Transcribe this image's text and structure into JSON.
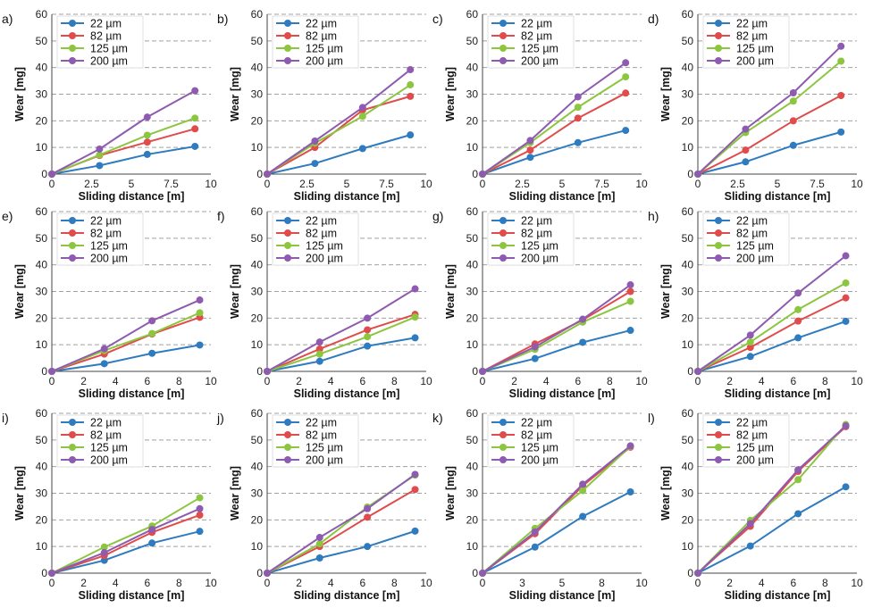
{
  "colors": {
    "s22": "#2e7bbf",
    "s82": "#e04b4b",
    "s125": "#8cc63f",
    "s200": "#8e5bb0",
    "grid": "#a0a0a0",
    "axis": "#444444"
  },
  "chart_data": [
    {
      "label": "a)",
      "type": "line",
      "xlabel": "Sliding distance [m]",
      "ylabel": "Wear [mg]",
      "xlim": [
        0,
        10
      ],
      "ylim": [
        0,
        60
      ],
      "xticks": [
        "0",
        "2.5",
        "5",
        "7.5",
        "10"
      ],
      "yticks": [
        "0",
        "10",
        "20",
        "30",
        "40",
        "50",
        "60"
      ],
      "x": [
        0,
        3,
        6,
        9
      ],
      "series": [
        {
          "name": "22 µm",
          "values": [
            0,
            3.2,
            7.4,
            10.4
          ]
        },
        {
          "name": "82 µm",
          "values": [
            0,
            7.0,
            12.0,
            17.0
          ]
        },
        {
          "name": "125 µm",
          "values": [
            0,
            7.2,
            14.6,
            21.0
          ]
        },
        {
          "name": "200 µm",
          "values": [
            0,
            9.4,
            21.4,
            31.3
          ]
        }
      ]
    },
    {
      "label": "b)",
      "type": "line",
      "xlabel": "Sliding distance [m]",
      "ylabel": "Wear [mg]",
      "xlim": [
        0,
        10
      ],
      "ylim": [
        0,
        60
      ],
      "xticks": [
        "0",
        "2.5",
        "5",
        "7.5",
        "10"
      ],
      "yticks": [
        "0",
        "10",
        "20",
        "30",
        "40",
        "50",
        "60"
      ],
      "x": [
        0,
        3,
        6,
        9
      ],
      "series": [
        {
          "name": "22 µm",
          "values": [
            0,
            4.0,
            9.6,
            14.7
          ]
        },
        {
          "name": "82 µm",
          "values": [
            0,
            10.0,
            24.0,
            29.2
          ]
        },
        {
          "name": "125 µm",
          "values": [
            0,
            11.6,
            21.7,
            33.5
          ]
        },
        {
          "name": "200 µm",
          "values": [
            0,
            12.4,
            25.0,
            39.2
          ]
        }
      ]
    },
    {
      "label": "c)",
      "type": "line",
      "xlabel": "Sliding distance [m]",
      "ylabel": "Wear [mg]",
      "xlim": [
        0,
        10
      ],
      "ylim": [
        0,
        60
      ],
      "xticks": [
        "0",
        "2.5",
        "5",
        "7.5",
        "10"
      ],
      "yticks": [
        "0",
        "10",
        "20",
        "30",
        "40",
        "50",
        "60"
      ],
      "x": [
        0,
        3,
        6,
        9
      ],
      "series": [
        {
          "name": "22 µm",
          "values": [
            0,
            6.3,
            11.8,
            16.4
          ]
        },
        {
          "name": "82 µm",
          "values": [
            0,
            9.0,
            21.0,
            30.4
          ]
        },
        {
          "name": "125 µm",
          "values": [
            0,
            11.8,
            25.1,
            36.5
          ]
        },
        {
          "name": "200 µm",
          "values": [
            0,
            12.6,
            29.0,
            41.8
          ]
        }
      ]
    },
    {
      "label": "d)",
      "type": "line",
      "xlabel": "Sliding distance [m]",
      "ylabel": "Wear [mg]",
      "xlim": [
        0,
        10
      ],
      "ylim": [
        0,
        60
      ],
      "xticks": [
        "0",
        "2.5",
        "5",
        "7.5",
        "10"
      ],
      "yticks": [
        "0",
        "10",
        "20",
        "30",
        "40",
        "50",
        "60"
      ],
      "x": [
        0,
        3,
        6,
        9
      ],
      "series": [
        {
          "name": "22 µm",
          "values": [
            0,
            4.6,
            10.8,
            15.8
          ]
        },
        {
          "name": "82 µm",
          "values": [
            0,
            9.0,
            20.0,
            29.5
          ]
        },
        {
          "name": "125 µm",
          "values": [
            0,
            15.6,
            27.4,
            42.4
          ]
        },
        {
          "name": "200 µm",
          "values": [
            0,
            16.9,
            30.5,
            48.0
          ]
        }
      ]
    },
    {
      "label": "e)",
      "type": "line",
      "xlabel": "Sliding distance [m]",
      "ylabel": "Wear [mg]",
      "xlim": [
        0,
        10
      ],
      "ylim": [
        0,
        60
      ],
      "xticks": [
        "0",
        "2",
        "4",
        "6",
        "8",
        "10"
      ],
      "yticks": [
        "0",
        "10",
        "20",
        "30",
        "40",
        "50",
        "60"
      ],
      "x": [
        0,
        3.3,
        6.3,
        9.3
      ],
      "series": [
        {
          "name": "22 µm",
          "values": [
            0,
            2.9,
            6.8,
            9.9
          ]
        },
        {
          "name": "82 µm",
          "values": [
            0,
            6.5,
            14.0,
            20.3
          ]
        },
        {
          "name": "125 µm",
          "values": [
            0,
            7.8,
            14.2,
            22.0
          ]
        },
        {
          "name": "200 µm",
          "values": [
            0,
            8.5,
            19.0,
            26.8
          ]
        }
      ]
    },
    {
      "label": "f)",
      "type": "line",
      "xlabel": "Sliding distance [m]",
      "ylabel": "Wear [mg]",
      "xlim": [
        0,
        10
      ],
      "ylim": [
        0,
        60
      ],
      "xticks": [
        "0",
        "2",
        "4",
        "6",
        "8",
        "10"
      ],
      "yticks": [
        "0",
        "10",
        "20",
        "30",
        "40",
        "50",
        "60"
      ],
      "x": [
        0,
        3.3,
        6.3,
        9.3
      ],
      "series": [
        {
          "name": "22 µm",
          "values": [
            0,
            3.8,
            9.5,
            12.6
          ]
        },
        {
          "name": "82 µm",
          "values": [
            0,
            8.4,
            15.6,
            21.4
          ]
        },
        {
          "name": "125 µm",
          "values": [
            0,
            6.5,
            13.0,
            20.4
          ]
        },
        {
          "name": "200 µm",
          "values": [
            0,
            11.0,
            20.0,
            31.0
          ]
        }
      ]
    },
    {
      "label": "g)",
      "type": "line",
      "xlabel": "Sliding distance [m]",
      "ylabel": "Wear [mg]",
      "xlim": [
        0,
        10
      ],
      "ylim": [
        0,
        60
      ],
      "xticks": [
        "0",
        "2",
        "4",
        "6",
        "8",
        "10"
      ],
      "yticks": [
        "0",
        "10",
        "20",
        "30",
        "40",
        "50",
        "60"
      ],
      "x": [
        0,
        3.3,
        6.3,
        9.3
      ],
      "series": [
        {
          "name": "22 µm",
          "values": [
            0,
            4.8,
            10.9,
            15.4
          ]
        },
        {
          "name": "82 µm",
          "values": [
            0,
            10.3,
            19.3,
            30.0
          ]
        },
        {
          "name": "125 µm",
          "values": [
            0,
            8.3,
            18.5,
            26.3
          ]
        },
        {
          "name": "200 µm",
          "values": [
            0,
            9.2,
            19.6,
            32.5
          ]
        }
      ]
    },
    {
      "label": "h)",
      "type": "line",
      "xlabel": "Sliding distance [m]",
      "ylabel": "Wear [mg]",
      "xlim": [
        0,
        10
      ],
      "ylim": [
        0,
        60
      ],
      "xticks": [
        "0",
        "2",
        "4",
        "6",
        "8",
        "10"
      ],
      "yticks": [
        "0",
        "10",
        "20",
        "30",
        "40",
        "50",
        "60"
      ],
      "x": [
        0,
        3.3,
        6.3,
        9.3
      ],
      "series": [
        {
          "name": "22 µm",
          "values": [
            0,
            5.6,
            12.6,
            18.8
          ]
        },
        {
          "name": "82 µm",
          "values": [
            0,
            9.0,
            18.9,
            27.6
          ]
        },
        {
          "name": "125 µm",
          "values": [
            0,
            11.0,
            23.2,
            33.2
          ]
        },
        {
          "name": "200 µm",
          "values": [
            0,
            13.6,
            29.4,
            43.4
          ]
        }
      ]
    },
    {
      "label": "i)",
      "type": "line",
      "xlabel": "Sliding distance [m]",
      "ylabel": "Wear [mg]",
      "xlim": [
        0,
        10
      ],
      "ylim": [
        0,
        60
      ],
      "xticks": [
        "0",
        "2",
        "4",
        "6",
        "8",
        "10"
      ],
      "yticks": [
        "0",
        "10",
        "20",
        "30",
        "40",
        "50",
        "60"
      ],
      "x": [
        0,
        3.3,
        6.3,
        9.3
      ],
      "series": [
        {
          "name": "22 µm",
          "values": [
            0,
            4.8,
            11.3,
            15.7
          ]
        },
        {
          "name": "82 µm",
          "values": [
            0,
            6.6,
            15.3,
            21.8
          ]
        },
        {
          "name": "125 µm",
          "values": [
            0,
            9.8,
            17.7,
            28.3
          ]
        },
        {
          "name": "200 µm",
          "values": [
            0,
            7.7,
            16.4,
            24.2
          ]
        }
      ]
    },
    {
      "label": "j)",
      "type": "line",
      "xlabel": "Sliding distance [m]",
      "ylabel": "Wear [mg]",
      "xlim": [
        0,
        10
      ],
      "ylim": [
        0,
        60
      ],
      "xticks": [
        "0",
        "2",
        "4",
        "6",
        "8",
        "10"
      ],
      "yticks": [
        "0",
        "10",
        "20",
        "30",
        "40",
        "50",
        "60"
      ],
      "x": [
        0,
        3.3,
        6.3,
        9.3
      ],
      "series": [
        {
          "name": "22 µm",
          "values": [
            0,
            5.7,
            10.0,
            15.8
          ]
        },
        {
          "name": "82 µm",
          "values": [
            0,
            10.0,
            21.0,
            31.4
          ]
        },
        {
          "name": "125 µm",
          "values": [
            0,
            11.0,
            24.8,
            36.8
          ]
        },
        {
          "name": "200 µm",
          "values": [
            0,
            13.4,
            24.2,
            37.1
          ]
        }
      ]
    },
    {
      "label": "k)",
      "type": "line",
      "xlabel": "Sliding distance [m]",
      "ylabel": "Wear [mg]",
      "xlim": [
        0,
        10
      ],
      "ylim": [
        0,
        60
      ],
      "xticks": [
        "0",
        "3",
        "5",
        "8",
        "10"
      ],
      "yticks": [
        "0",
        "10",
        "20",
        "30",
        "40",
        "50",
        "60"
      ],
      "x": [
        0,
        3.3,
        6.3,
        9.3
      ],
      "series": [
        {
          "name": "22 µm",
          "values": [
            0,
            9.8,
            21.3,
            30.5
          ]
        },
        {
          "name": "82 µm",
          "values": [
            0,
            14.8,
            32.8,
            47.3
          ]
        },
        {
          "name": "125 µm",
          "values": [
            0,
            16.8,
            31.0,
            47.6
          ]
        },
        {
          "name": "200 µm",
          "values": [
            0,
            15.5,
            33.4,
            47.8
          ]
        }
      ]
    },
    {
      "label": "l)",
      "type": "line",
      "xlabel": "Sliding distance [m]",
      "ylabel": "Wear [mg]",
      "xlim": [
        0,
        10
      ],
      "ylim": [
        0,
        60
      ],
      "xticks": [
        "0",
        "2",
        "4",
        "6",
        "8",
        "10"
      ],
      "yticks": [
        "0",
        "10",
        "20",
        "30",
        "40",
        "50",
        "60"
      ],
      "x": [
        0,
        3.3,
        6.3,
        9.3
      ],
      "series": [
        {
          "name": "22 µm",
          "values": [
            0,
            10.2,
            22.3,
            32.4
          ]
        },
        {
          "name": "82 µm",
          "values": [
            0,
            17.6,
            38.2,
            55.0
          ]
        },
        {
          "name": "125 µm",
          "values": [
            0,
            19.8,
            35.1,
            55.8
          ]
        },
        {
          "name": "200 µm",
          "values": [
            0,
            18.6,
            38.8,
            55.3
          ]
        }
      ]
    }
  ]
}
